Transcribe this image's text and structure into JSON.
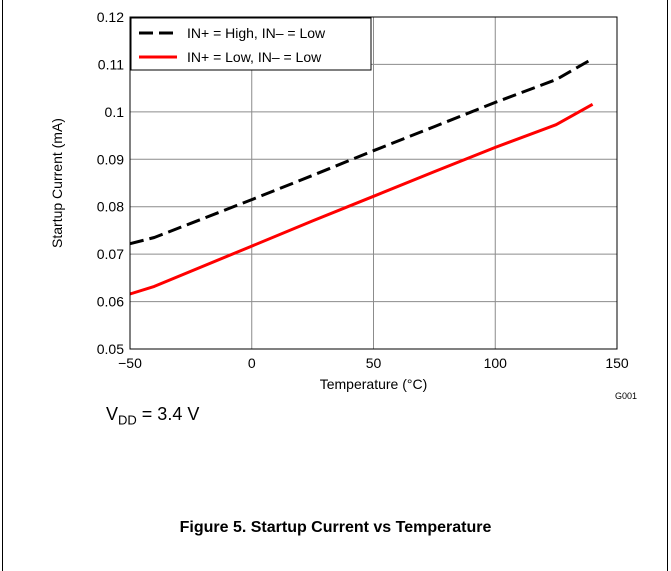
{
  "chart_data": {
    "type": "line",
    "xlabel": "Temperature (°C)",
    "ylabel": "Startup Current (mA)",
    "xlim": [
      -50,
      150
    ],
    "ylim": [
      0.05,
      0.12
    ],
    "xticks": [
      -50,
      0,
      50,
      100,
      150
    ],
    "xtick_labels": [
      "−50",
      "0",
      "50",
      "100",
      "150"
    ],
    "yticks": [
      0.05,
      0.06,
      0.07,
      0.08,
      0.09,
      0.1,
      0.11,
      0.12
    ],
    "ytick_labels": [
      "0.05",
      "0.06",
      "0.07",
      "0.08",
      "0.09",
      "0.1",
      "0.11",
      "0.12"
    ],
    "grid": true,
    "legend_position": "top-left",
    "code": "G001",
    "series": [
      {
        "name": "IN+ = High, IN– = Low",
        "color": "#000000",
        "style": "dashed",
        "x": [
          -50,
          -40,
          -25,
          0,
          25,
          50,
          75,
          100,
          125,
          140
        ],
        "y": [
          0.0722,
          0.0735,
          0.0765,
          0.0815,
          0.0866,
          0.0918,
          0.0969,
          0.102,
          0.1068,
          0.1112
        ]
      },
      {
        "name": "IN+ = Low, IN– = Low",
        "color": "#ff0000",
        "style": "solid",
        "x": [
          -50,
          -40,
          -25,
          0,
          25,
          50,
          75,
          100,
          125,
          140
        ],
        "y": [
          0.0616,
          0.0632,
          0.0664,
          0.0717,
          0.077,
          0.0822,
          0.0874,
          0.0925,
          0.0973,
          0.1016
        ]
      }
    ]
  },
  "annotation": {
    "prefix": "V",
    "subscript": "DD",
    "suffix": " = 3.4 V"
  },
  "caption": "Figure 5. Startup Current vs Temperature"
}
